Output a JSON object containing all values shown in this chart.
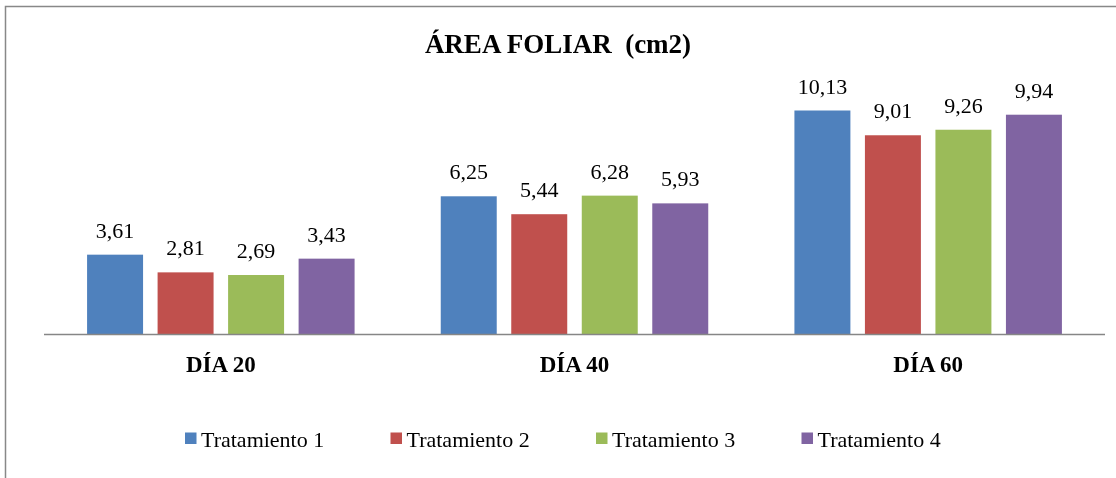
{
  "chart_data": {
    "type": "bar",
    "title": "ÁREA FOLIAR  (cm2)",
    "categories": [
      "DÍA 20",
      "DÍA 40",
      "DÍA 60"
    ],
    "series": [
      {
        "name": "Tratamiento 1",
        "color": "#4f81bd",
        "values": [
          3.61,
          6.25,
          10.13
        ],
        "value_labels": [
          "3,61",
          "6,25",
          "10,13"
        ]
      },
      {
        "name": "Tratamiento 2",
        "color": "#c0504d",
        "values": [
          2.81,
          5.44,
          9.01
        ],
        "value_labels": [
          "2,81",
          "5,44",
          "9,01"
        ]
      },
      {
        "name": "Tratamiento 3",
        "color": "#9bbb59",
        "values": [
          2.69,
          6.28,
          9.26
        ],
        "value_labels": [
          "2,69",
          "6,28",
          "9,26"
        ]
      },
      {
        "name": "Tratamiento 4",
        "color": "#8064a2",
        "values": [
          3.43,
          5.93,
          9.94
        ],
        "value_labels": [
          "3,43",
          "5,93",
          "9,94"
        ]
      }
    ],
    "legend": "bottom"
  }
}
